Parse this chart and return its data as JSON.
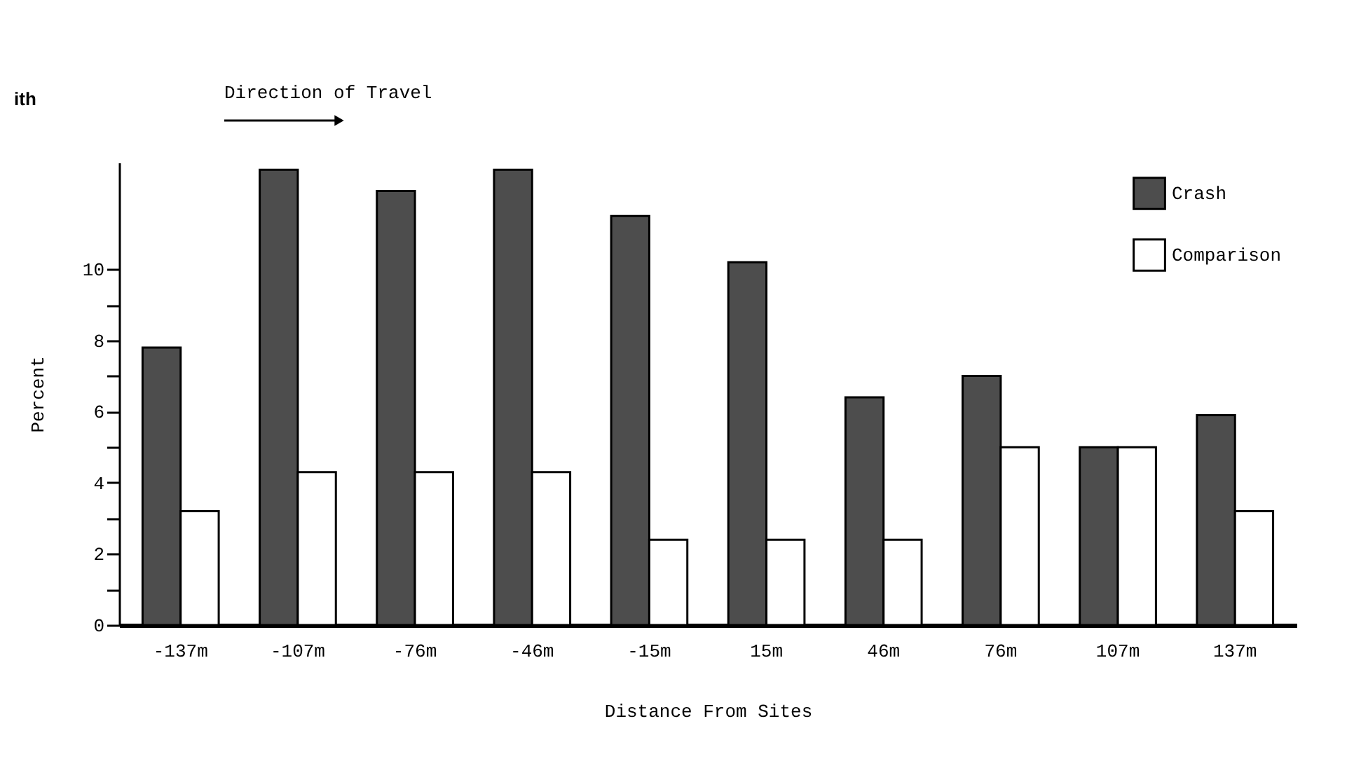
{
  "chart_data": {
    "type": "bar",
    "categories": [
      "-137m",
      "-107m",
      "-76m",
      "-46m",
      "-15m",
      "15m",
      "46m",
      "76m",
      "107m",
      "137m"
    ],
    "series": [
      {
        "name": "Crash",
        "color": "#4d4d4d",
        "values": [
          7.8,
          12.8,
          12.2,
          12.8,
          11.5,
          10.2,
          6.4,
          7.0,
          5.0,
          5.9
        ]
      },
      {
        "name": "Comparison",
        "color": "#ffffff",
        "values": [
          3.2,
          4.3,
          4.3,
          4.3,
          2.4,
          2.4,
          2.4,
          5.0,
          5.0,
          3.2
        ]
      }
    ],
    "xlabel": "Distance From Sites",
    "ylabel": "Percent",
    "ylim": [
      0,
      13
    ],
    "yticks": [
      0,
      {
        "value": 1,
        "label": null
      },
      2,
      {
        "value": 3,
        "label": null
      },
      4,
      {
        "value": 5,
        "label": null
      },
      6,
      {
        "value": 7,
        "label": null
      },
      8,
      {
        "value": 9,
        "label": null
      },
      10
    ],
    "annotations": [
      "ith",
      "Direction of Travel"
    ],
    "grid": false,
    "legend": "top right"
  }
}
